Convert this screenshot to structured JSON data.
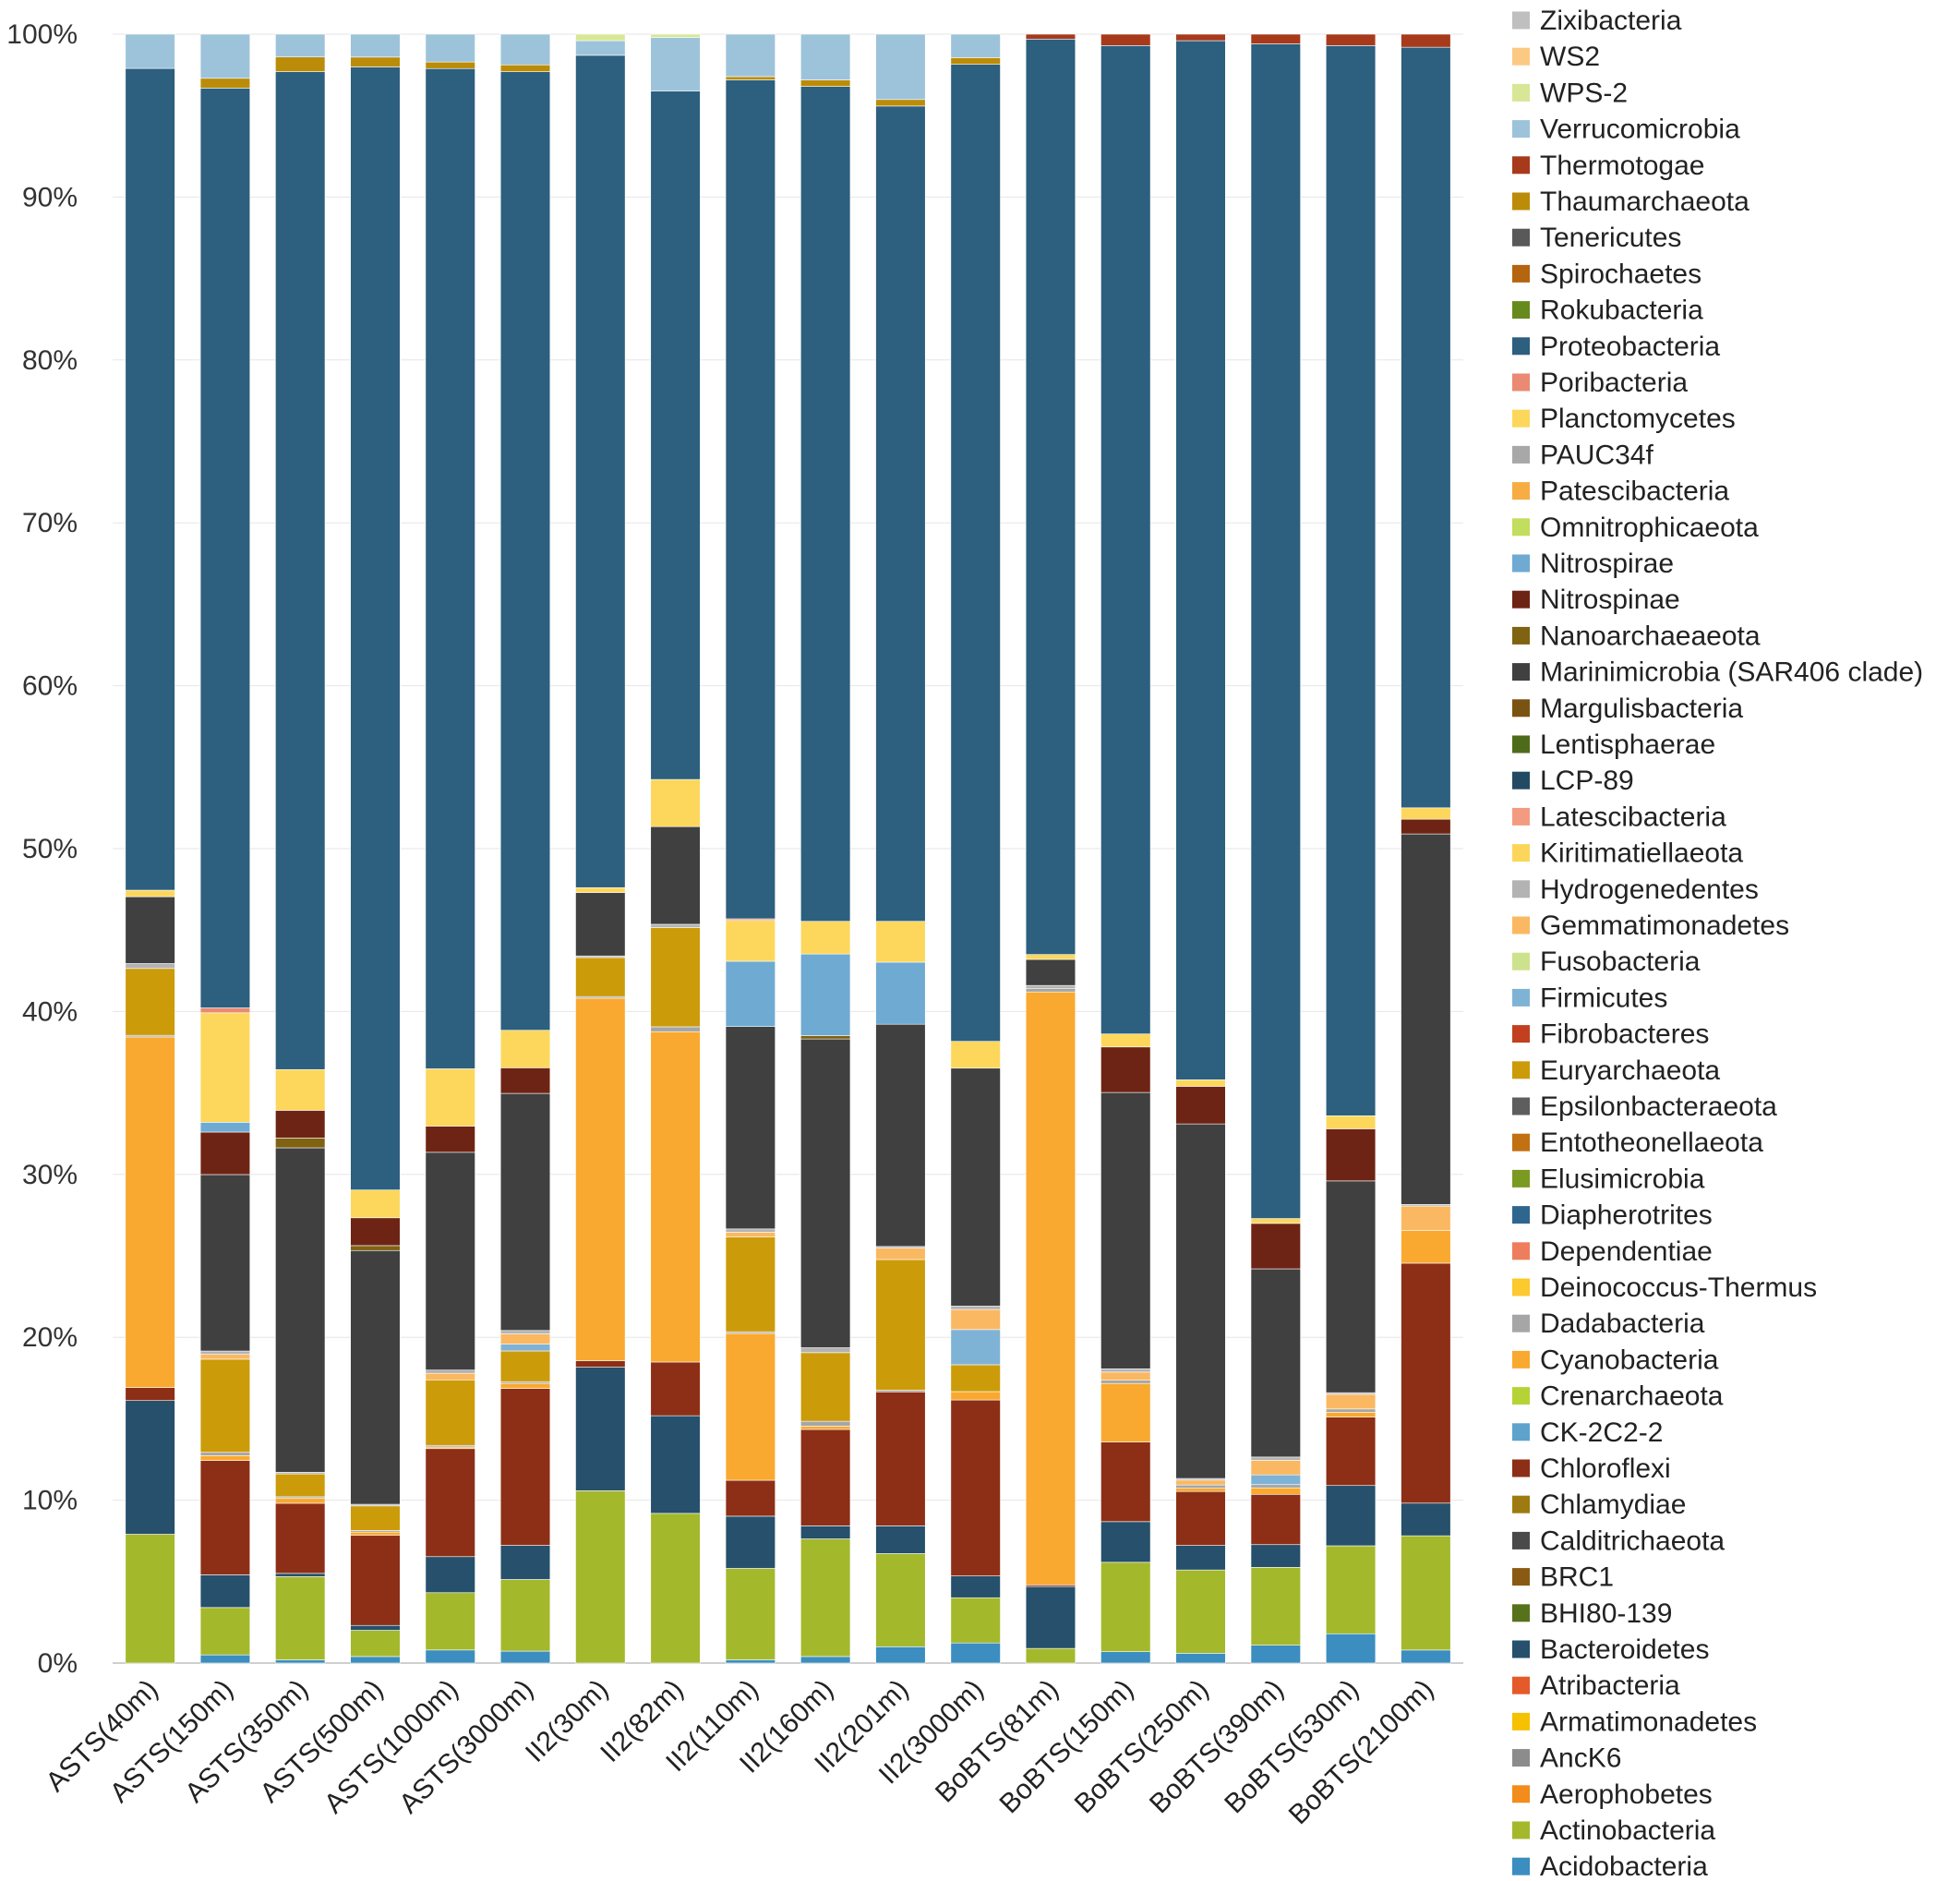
{
  "chart_data": {
    "type": "bar",
    "stacked": true,
    "normalized": true,
    "title": "",
    "xlabel": "",
    "ylabel": "",
    "ylim": [
      0,
      100
    ],
    "y_ticks": [
      "0%",
      "10%",
      "20%",
      "30%",
      "40%",
      "50%",
      "60%",
      "70%",
      "80%",
      "90%",
      "100%"
    ],
    "legend_position": "right",
    "categories": [
      "ASTS(40m)",
      "ASTS(150m)",
      "ASTS(350m)",
      "ASTS(500m)",
      "ASTS(1000m)",
      "ASTS(3000m)",
      "II2(30m)",
      "II2(82m)",
      "II2(110m)",
      "II2(160m)",
      "II2(201m)",
      "II2(3000m)",
      "BoBTS(81m)",
      "BoBTS(150m)",
      "BoBTS(250m)",
      "BoBTS(390m)",
      "BoBTS(530m)",
      "BoBTS(2100m)"
    ],
    "series": [
      {
        "name": "Acidobacteria",
        "color": "#3b8ebf",
        "values": [
          0,
          0.5,
          0.2,
          0.4,
          0.8,
          0.7,
          0,
          0,
          0.2,
          0.4,
          1.0,
          1.2,
          0,
          0.7,
          0.6,
          1.1,
          1.8,
          0.8
        ]
      },
      {
        "name": "Actinobacteria",
        "color": "#a4b82c",
        "values": [
          7.9,
          2.9,
          5.1,
          1.6,
          3.5,
          4.2,
          10.6,
          9.2,
          5.6,
          7.2,
          5.7,
          2.7,
          0.9,
          5.5,
          5.1,
          4.8,
          5.4,
          7.0
        ]
      },
      {
        "name": "Aerophobetes",
        "color": "#f28c1c",
        "values": [
          0,
          0,
          0,
          0,
          0,
          0,
          0,
          0,
          0,
          0,
          0,
          0,
          0,
          0,
          0,
          0,
          0,
          0
        ]
      },
      {
        "name": "AncK6",
        "color": "#8c8c8c",
        "values": [
          0,
          0,
          0,
          0,
          0,
          0,
          0,
          0,
          0,
          0,
          0,
          0,
          0,
          0,
          0,
          0,
          0,
          0
        ]
      },
      {
        "name": "Armatimonadetes",
        "color": "#f5c100",
        "values": [
          0,
          0,
          0,
          0,
          0,
          0,
          0,
          0,
          0,
          0,
          0,
          0,
          0,
          0,
          0,
          0,
          0,
          0
        ]
      },
      {
        "name": "Atribacteria",
        "color": "#e55a2b",
        "values": [
          0,
          0,
          0,
          0,
          0,
          0,
          0,
          0,
          0,
          0,
          0,
          0,
          0,
          0,
          0,
          0,
          0,
          0
        ]
      },
      {
        "name": "Bacteroidetes",
        "color": "#26506b",
        "values": [
          8.2,
          2.0,
          0.2,
          0.3,
          2.2,
          2.0,
          7.6,
          6.0,
          3.2,
          0.8,
          1.7,
          1.3,
          3.8,
          2.5,
          1.5,
          1.4,
          3.7,
          2.0
        ]
      },
      {
        "name": "BHI80-139",
        "color": "#56731b",
        "values": [
          0,
          0,
          0,
          0,
          0,
          0,
          0,
          0,
          0,
          0,
          0,
          0,
          0,
          0,
          0,
          0,
          0,
          0
        ]
      },
      {
        "name": "BRC1",
        "color": "#8a5a14",
        "values": [
          0,
          0,
          0,
          0,
          0,
          0,
          0,
          0,
          0,
          0,
          0,
          0,
          0,
          0,
          0,
          0,
          0,
          0
        ]
      },
      {
        "name": "Calditrichaeota",
        "color": "#4a4a4a",
        "values": [
          0,
          0,
          0,
          0,
          0,
          0,
          0,
          0,
          0,
          0,
          0,
          0,
          0,
          0,
          0,
          0,
          0,
          0
        ]
      },
      {
        "name": "Chlamydiae",
        "color": "#9e7b10",
        "values": [
          0,
          0,
          0,
          0,
          0,
          0,
          0,
          0,
          0,
          0,
          0,
          0,
          0,
          0,
          0,
          0,
          0,
          0
        ]
      },
      {
        "name": "Chloroflexi",
        "color": "#8c2f16",
        "values": [
          0.8,
          7.0,
          4.3,
          5.5,
          6.6,
          9.2,
          0.4,
          3.3,
          2.2,
          5.9,
          8.2,
          10.5,
          0.1,
          4.9,
          3.3,
          3.1,
          4.2,
          14.7
        ]
      },
      {
        "name": "CK-2C2-2",
        "color": "#5ea3cc",
        "values": [
          0,
          0,
          0,
          0,
          0,
          0,
          0,
          0,
          0,
          0,
          0,
          0,
          0,
          0,
          0,
          0,
          0,
          0
        ]
      },
      {
        "name": "Crenarchaeota",
        "color": "#b5d336",
        "values": [
          0,
          0,
          0,
          0,
          0,
          0,
          0,
          0,
          0,
          0,
          0,
          0,
          0,
          0,
          0,
          0,
          0,
          0
        ]
      },
      {
        "name": "Cyanobacteria",
        "color": "#f9a930",
        "values": [
          21.5,
          0.3,
          0.3,
          0.2,
          0.1,
          0.3,
          22.3,
          20.3,
          9.0,
          0.2,
          0,
          0.5,
          36.4,
          3.6,
          0.2,
          0.4,
          0.3,
          2.0
        ]
      },
      {
        "name": "Dadabacteria",
        "color": "#a6a6a6",
        "values": [
          0.1,
          0.2,
          0.1,
          0.1,
          0.1,
          0.1,
          0.1,
          0.3,
          0.1,
          0.3,
          0.1,
          0,
          0.2,
          0.2,
          0.2,
          0.2,
          0.2,
          0
        ]
      },
      {
        "name": "Deinococcus-Thermus",
        "color": "#fcc92e",
        "values": [
          0,
          0,
          0,
          0,
          0,
          0,
          0,
          0,
          0,
          0,
          0,
          0,
          0,
          0,
          0,
          0,
          0,
          0
        ]
      },
      {
        "name": "Dependentiae",
        "color": "#ee7d5d",
        "values": [
          0,
          0,
          0,
          0,
          0,
          0,
          0,
          0,
          0,
          0,
          0,
          0,
          0,
          0,
          0,
          0,
          0,
          0
        ]
      },
      {
        "name": "Diapherotrites",
        "color": "#2f6690",
        "values": [
          0,
          0,
          0,
          0,
          0,
          0,
          0,
          0,
          0,
          0,
          0,
          0,
          0,
          0,
          0,
          0,
          0,
          0
        ]
      },
      {
        "name": "Elusimicrobia",
        "color": "#7a9a22",
        "values": [
          0,
          0,
          0,
          0,
          0,
          0,
          0,
          0,
          0,
          0,
          0,
          0,
          0,
          0,
          0,
          0,
          0,
          0
        ]
      },
      {
        "name": "Entotheonellaeota",
        "color": "#c17012",
        "values": [
          0,
          0,
          0,
          0,
          0,
          0,
          0,
          0,
          0,
          0,
          0,
          0,
          0,
          0,
          0,
          0,
          0,
          0
        ]
      },
      {
        "name": "Epsilonbacteraeota",
        "color": "#5e5e5e",
        "values": [
          0,
          0,
          0,
          0,
          0,
          0,
          0,
          0,
          0,
          0,
          0,
          0,
          0,
          0,
          0,
          0,
          0,
          0
        ]
      },
      {
        "name": "Euryarchaeota",
        "color": "#cc9b0a",
        "values": [
          4.1,
          5.7,
          1.4,
          1.5,
          4.0,
          1.8,
          2.4,
          6.1,
          5.8,
          4.2,
          8.0,
          1.6,
          0,
          0,
          0,
          0,
          0,
          0
        ]
      },
      {
        "name": "Fibrobacteres",
        "color": "#c2401f",
        "values": [
          0,
          0,
          0,
          0,
          0,
          0,
          0,
          0,
          0,
          0,
          0,
          0,
          0,
          0,
          0,
          0,
          0,
          0
        ]
      },
      {
        "name": "Firmicutes",
        "color": "#7fb3d5",
        "values": [
          0,
          0,
          0,
          0,
          0,
          0.4,
          0,
          0,
          0,
          0,
          0,
          2.1,
          0,
          0,
          0,
          0.6,
          0,
          0
        ]
      },
      {
        "name": "Fusobacteria",
        "color": "#cde28c",
        "values": [
          0,
          0,
          0,
          0,
          0,
          0,
          0,
          0,
          0,
          0,
          0,
          0,
          0,
          0,
          0,
          0,
          0,
          0
        ]
      },
      {
        "name": "Gemmatimonadetes",
        "color": "#fbb862",
        "values": [
          0,
          0.3,
          0,
          0,
          0.4,
          0.6,
          0,
          0,
          0.3,
          0,
          0.7,
          1.2,
          0,
          0.5,
          0.3,
          0.9,
          0.9,
          1.5
        ]
      },
      {
        "name": "Hydrogenedentes",
        "color": "#b3b3b3",
        "values": [
          0.3,
          0.2,
          0.1,
          0.1,
          0.2,
          0.2,
          0.1,
          0.2,
          0.2,
          0.3,
          0.1,
          0.2,
          0.2,
          0.2,
          0.1,
          0.2,
          0.1,
          0.1
        ]
      },
      {
        "name": "Kiritimatiellaeota",
        "color": "#fcd65a",
        "values": [
          0,
          0,
          0,
          0,
          0,
          0,
          0,
          0,
          0,
          0,
          0,
          0,
          0,
          0,
          0,
          0,
          0,
          0
        ]
      },
      {
        "name": "Latescibacteria",
        "color": "#f39b80",
        "values": [
          0,
          0,
          0,
          0,
          0,
          0,
          0,
          0,
          0,
          0,
          0,
          0,
          0,
          0,
          0,
          0,
          0,
          0
        ]
      },
      {
        "name": "LCP-89",
        "color": "#234a63",
        "values": [
          0,
          0,
          0,
          0,
          0,
          0,
          0,
          0,
          0,
          0,
          0,
          0,
          0,
          0,
          0,
          0,
          0,
          0
        ]
      },
      {
        "name": "Lentisphaerae",
        "color": "#4e6b1b",
        "values": [
          0,
          0,
          0,
          0,
          0,
          0,
          0,
          0,
          0,
          0,
          0,
          0,
          0,
          0,
          0,
          0,
          0,
          0
        ]
      },
      {
        "name": "Margulisbacteria",
        "color": "#7a5313",
        "values": [
          0,
          0,
          0,
          0,
          0,
          0,
          0,
          0,
          0,
          0,
          0,
          0,
          0,
          0,
          0,
          0,
          0,
          0
        ]
      },
      {
        "name": "Marinimicrobia (SAR406 clade)",
        "color": "#404040",
        "values": [
          4.1,
          10.8,
          19.9,
          15.5,
          13.3,
          13.9,
          3.9,
          6.0,
          12.4,
          18.9,
          13.6,
          14.2,
          1.6,
          17.0,
          21.7,
          11.6,
          13.0,
          22.7
        ]
      },
      {
        "name": "Nanoarchaeaeota",
        "color": "#7f6212",
        "values": [
          0,
          0,
          0.6,
          0.3,
          0,
          0,
          0,
          0,
          0,
          0.2,
          0,
          0,
          0,
          0,
          0,
          0,
          0,
          0
        ]
      },
      {
        "name": "Nitrospinae",
        "color": "#6e2414",
        "values": [
          0,
          2.6,
          1.7,
          1.7,
          1.6,
          1.5,
          0,
          0,
          0,
          0,
          0,
          0,
          0,
          2.8,
          2.3,
          2.8,
          3.2,
          0.9
        ]
      },
      {
        "name": "Nitrospirae",
        "color": "#6faad2",
        "values": [
          0,
          0.6,
          0,
          0,
          0,
          0,
          0,
          0,
          4.0,
          5.0,
          3.8,
          0,
          0,
          0,
          0,
          0,
          0,
          0
        ]
      },
      {
        "name": "Omnitrophicaeota",
        "color": "#c3dd5e",
        "values": [
          0,
          0,
          0,
          0,
          0,
          0,
          0,
          0,
          0,
          0,
          0,
          0,
          0,
          0,
          0,
          0,
          0,
          0
        ]
      },
      {
        "name": "Patescibacteria",
        "color": "#f7ac44",
        "values": [
          0,
          0,
          0,
          0,
          0,
          0,
          0,
          0,
          0,
          0,
          0,
          0,
          0,
          0,
          0,
          0,
          0,
          0
        ]
      },
      {
        "name": "PAUC34f",
        "color": "#a8a8a8",
        "values": [
          0,
          0,
          0,
          0,
          0,
          0,
          0,
          0,
          0,
          0,
          0,
          0,
          0,
          0,
          0,
          0,
          0,
          0
        ]
      },
      {
        "name": "Planctomycetes",
        "color": "#fcd75c",
        "values": [
          0.4,
          6.7,
          2.5,
          1.7,
          3.5,
          2.2,
          0.3,
          2.9,
          2.5,
          2.0,
          2.5,
          1.6,
          0.3,
          0.8,
          0.4,
          0.3,
          0.8,
          0.7
        ]
      },
      {
        "name": "Poribacteria",
        "color": "#ea8a72",
        "values": [
          0,
          0.3,
          0,
          0,
          0,
          0,
          0,
          0,
          0.1,
          0,
          0,
          0,
          0,
          0,
          0,
          0,
          0,
          0
        ]
      },
      {
        "name": "Proteobacteria",
        "color": "#2d5f7e",
        "values": [
          50.4,
          56.3,
          61.2,
          68.6,
          61.1,
          56.2,
          51.2,
          42.3,
          51.4,
          51.1,
          49.9,
          58.3,
          56.2,
          60.8,
          63.6,
          72.4,
          65.7,
          46.6
        ]
      },
      {
        "name": "Rokubacteria",
        "color": "#668a1e",
        "values": [
          0,
          0,
          0,
          0,
          0,
          0,
          0,
          0,
          0,
          0,
          0,
          0,
          0,
          0,
          0,
          0,
          0,
          0
        ]
      },
      {
        "name": "Spirochaetes",
        "color": "#b5650f",
        "values": [
          0,
          0,
          0,
          0,
          0,
          0,
          0,
          0,
          0,
          0,
          0,
          0,
          0,
          0,
          0,
          0,
          0,
          0
        ]
      },
      {
        "name": "Tenericutes",
        "color": "#595959",
        "values": [
          0,
          0,
          0,
          0,
          0,
          0,
          0,
          0,
          0,
          0,
          0,
          0,
          0,
          0,
          0,
          0,
          0,
          0
        ]
      },
      {
        "name": "Thaumarchaeota",
        "color": "#bb8c09",
        "values": [
          0,
          0.6,
          0.9,
          0.6,
          0.4,
          0.4,
          0,
          0,
          0.2,
          0.4,
          0.4,
          0.4,
          0,
          0,
          0,
          0,
          0,
          0
        ]
      },
      {
        "name": "Thermotogae",
        "color": "#a83a1c",
        "values": [
          0,
          0,
          0,
          0,
          0,
          0,
          0,
          0,
          0,
          0,
          0,
          0,
          0.3,
          0.7,
          0.4,
          0.6,
          0.7,
          0.8
        ]
      },
      {
        "name": "Verrucomicrobia",
        "color": "#9dc3da",
        "values": [
          2.1,
          2.7,
          1.4,
          1.4,
          1.7,
          1.8,
          0.9,
          3.3,
          2.6,
          2.8,
          4.0,
          1.4,
          0,
          0,
          0,
          0,
          0,
          0
        ]
      },
      {
        "name": "WPS-2",
        "color": "#d8e796",
        "values": [
          0,
          0,
          0,
          0,
          0,
          0,
          0.4,
          0.2,
          0,
          0,
          0,
          0,
          0,
          0,
          0,
          0,
          0,
          0
        ]
      },
      {
        "name": "WS2",
        "color": "#fcc983",
        "values": [
          0,
          0,
          0,
          0,
          0,
          0,
          0,
          0,
          0,
          0,
          0,
          0,
          0,
          0,
          0,
          0,
          0,
          0
        ]
      },
      {
        "name": "Zixibacteria",
        "color": "#bfbfbf",
        "values": [
          0,
          0,
          0,
          0,
          0,
          0,
          0,
          0,
          0,
          0,
          0,
          0,
          0,
          0,
          0,
          0,
          0,
          0
        ]
      }
    ]
  }
}
